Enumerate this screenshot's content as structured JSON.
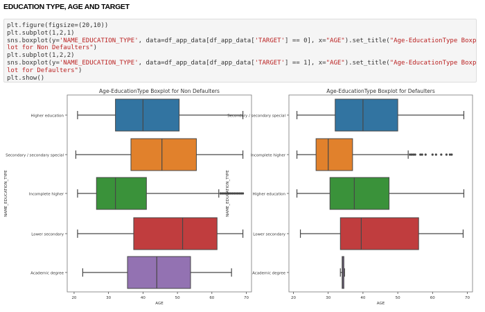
{
  "heading": "EDUCATION TYPE, AGE AND TARGET",
  "code_lines": [
    [
      {
        "t": "plt.figure(figsize=(20,10))"
      }
    ],
    [
      {
        "t": "plt.subplot(1,2,1)"
      }
    ],
    [
      {
        "t": "sns.boxplot(y="
      },
      {
        "t": "'NAME_EDUCATION_TYPE'",
        "s": 1
      },
      {
        "t": ", data=df_app_data[df_app_data["
      },
      {
        "t": "'TARGET'",
        "s": 1
      },
      {
        "t": "] == 0], x="
      },
      {
        "t": "\"AGE\"",
        "s": 1
      },
      {
        "t": ").set_title("
      },
      {
        "t": "\"Age-EducationType Boxp",
        "s": 1
      }
    ],
    [
      {
        "t": "lot for Non Defaulters\"",
        "s": 1
      },
      {
        "t": ")"
      }
    ],
    [
      {
        "t": "plt.subplot(1,2,2)"
      }
    ],
    [
      {
        "t": "sns.boxplot(y="
      },
      {
        "t": "'NAME_EDUCATION_TYPE'",
        "s": 1
      },
      {
        "t": ", data=df_app_data[df_app_data["
      },
      {
        "t": "'TARGET'",
        "s": 1
      },
      {
        "t": "] == 1], x="
      },
      {
        "t": "\"AGE\"",
        "s": 1
      },
      {
        "t": ").set_title("
      },
      {
        "t": "\"Age-EducationType Boxp",
        "s": 1
      }
    ],
    [
      {
        "t": "lot for Defaulters\"",
        "s": 1
      },
      {
        "t": ")"
      }
    ],
    [
      {
        "t": "plt.show()"
      }
    ]
  ],
  "chart_data": [
    {
      "type": "box",
      "title": "Age-EducationType Boxplot for Non Defaulters",
      "xlabel": "AGE",
      "ylabel": "NAME_EDUCATION_TYPE",
      "xlim": [
        18,
        71.5
      ],
      "xticks": [
        20,
        30,
        40,
        50,
        60,
        70
      ],
      "categories": [
        "Higher education",
        "Secondary / secondary special",
        "Incomplete higher",
        "Lower secondary",
        "Academic degree"
      ],
      "colors": [
        "#3274a1",
        "#e1812c",
        "#3a923a",
        "#c03d3e",
        "#9372b2"
      ],
      "boxes": [
        {
          "whislo": 21,
          "q1": 32,
          "med": 40,
          "q3": 50.5,
          "whishi": 69,
          "fliers": []
        },
        {
          "whislo": 20.5,
          "q1": 36.5,
          "med": 45.5,
          "q3": 55.5,
          "whishi": 69,
          "fliers": []
        },
        {
          "whislo": 21,
          "q1": 26.5,
          "med": 32,
          "q3": 41,
          "whishi": 62,
          "fliers": [
            62.5,
            63,
            63.5,
            64,
            64.5,
            65,
            65.5,
            66,
            66.5,
            67,
            67.5,
            68,
            68.5,
            69
          ]
        },
        {
          "whislo": 21,
          "q1": 37.3,
          "med": 51.5,
          "q3": 61.5,
          "whishi": 69,
          "fliers": []
        },
        {
          "whislo": 22.5,
          "q1": 35.5,
          "med": 44,
          "q3": 53.8,
          "whishi": 65.7,
          "fliers": []
        }
      ]
    },
    {
      "type": "box",
      "title": "Age-EducationType Boxplot for Defaulters",
      "xlabel": "AGE",
      "ylabel": "NAME_EDUCATION_TYPE",
      "xlim": [
        18.7,
        71.5
      ],
      "xticks": [
        20,
        30,
        40,
        50,
        60,
        70
      ],
      "categories": [
        "Secondary / secondary special",
        "Incomplete higher",
        "Higher education",
        "Lower secondary",
        "Academic degree"
      ],
      "colors": [
        "#3274a1",
        "#e1812c",
        "#3a923a",
        "#c03d3e",
        "#9372b2"
      ],
      "boxes": [
        {
          "whislo": 21,
          "q1": 32,
          "med": 40,
          "q3": 50,
          "whishi": 69,
          "fliers": []
        },
        {
          "whislo": 21,
          "q1": 26.5,
          "med": 30,
          "q3": 37,
          "whishi": 53,
          "fliers": [
            53.5,
            54,
            54.5,
            55,
            56.5,
            57,
            58,
            60,
            61,
            62.5,
            64,
            65,
            65.5
          ]
        },
        {
          "whislo": 21,
          "q1": 30.5,
          "med": 37.5,
          "q3": 47.5,
          "whishi": 69,
          "fliers": []
        },
        {
          "whislo": 22,
          "q1": 33.5,
          "med": 39.5,
          "q3": 56,
          "whishi": 68.8,
          "fliers": []
        },
        {
          "whislo": 33.5,
          "q1": 34,
          "med": 34.2,
          "q3": 34.5,
          "whishi": 34.7,
          "fliers": []
        }
      ]
    }
  ]
}
